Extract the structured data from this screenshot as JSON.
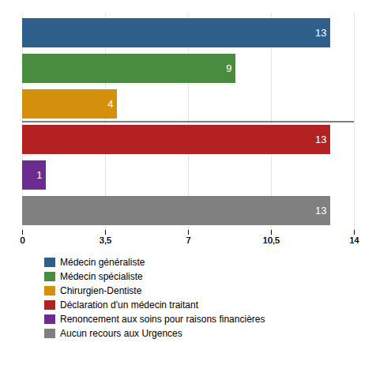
{
  "chart_data": {
    "type": "bar",
    "orientation": "horizontal",
    "categories": [
      "Médecin généraliste",
      "Médecin spécialiste",
      "Chirurgien-Dentiste",
      "Déclaration d'un médecin traitant",
      "Renoncement aux soins pour raisons financières",
      "Aucun recours aux Urgences"
    ],
    "values": [
      13,
      9,
      4,
      13,
      1,
      13
    ],
    "colors": [
      "#2e5f8a",
      "#4a8c3f",
      "#d4900a",
      "#b22222",
      "#6a2d8f",
      "#808080"
    ],
    "xlim": [
      0,
      14
    ],
    "xticks": [
      0,
      {
        "value": 3.5,
        "label": "3,5"
      },
      7,
      {
        "value": 10.5,
        "label": "10,5"
      },
      14
    ],
    "grid": true,
    "data_labels": true,
    "tick_labels": "x",
    "legend": "bottom"
  }
}
